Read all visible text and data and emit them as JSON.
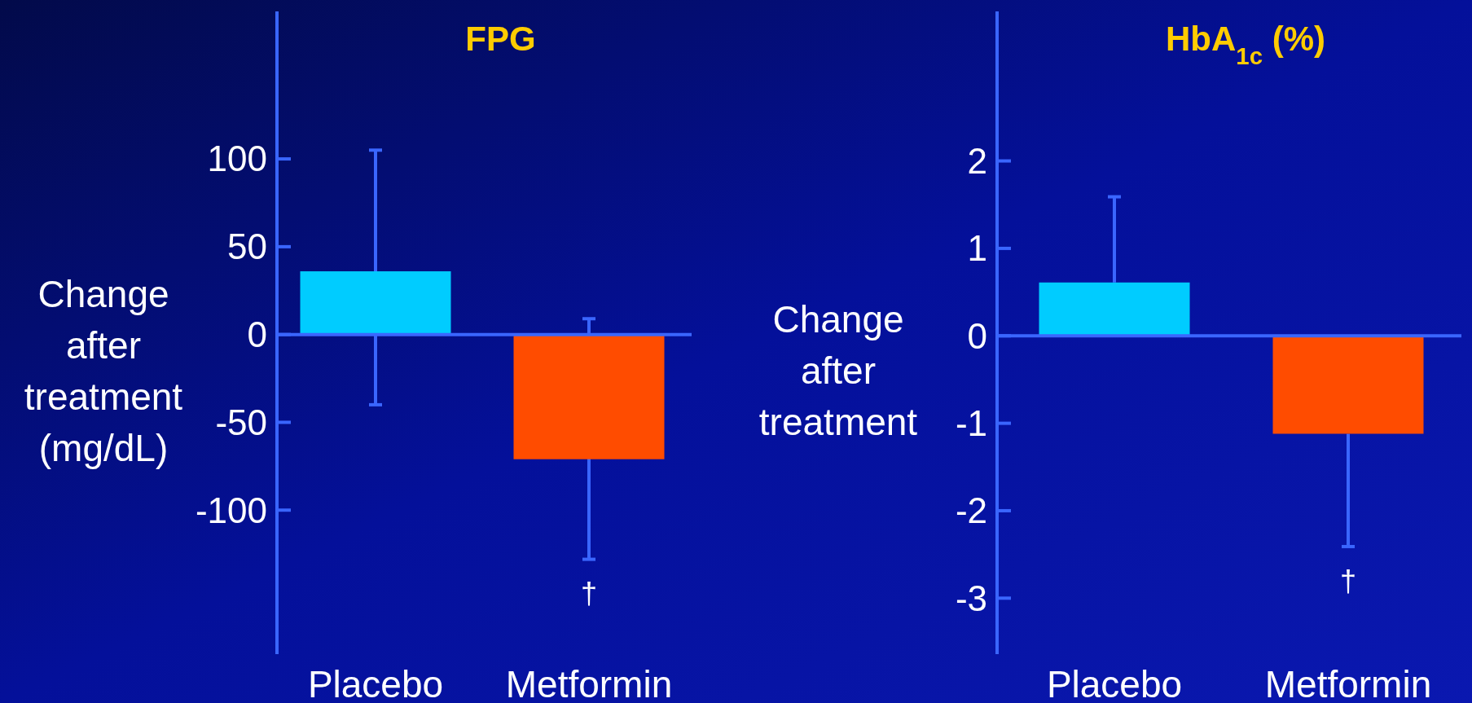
{
  "chart_data": [
    {
      "type": "bar",
      "title": "FPG",
      "ylabel": "Change after treatment (mg/dL)",
      "categories": [
        "Placebo",
        "Metformin"
      ],
      "values": [
        36,
        -71
      ],
      "colors": [
        "#00ccff",
        "#ff4c00"
      ],
      "errors": [
        [
          -40,
          105
        ],
        [
          -128,
          9
        ]
      ],
      "ylim": [
        -182,
        184
      ],
      "yticks": [
        -100,
        -50,
        0,
        50,
        100
      ],
      "grid": false,
      "ref_lines": [
        {
          "axis": "y",
          "value": 0
        }
      ],
      "annotations": [
        "†"
      ]
    },
    {
      "type": "bar",
      "title": "HbA$_{1c}$ (%)",
      "ylabel": "Change after treatment",
      "categories": [
        "Placebo",
        "Metformin"
      ],
      "values": [
        0.61,
        -1.12
      ],
      "colors": [
        "#00ccff",
        "#ff4c00"
      ],
      "errors": [
        [
          0.61,
          1.59
        ],
        [
          -2.41,
          -1.12
        ]
      ],
      "ylim": [
        -3.64,
        3.71
      ],
      "yticks": [
        -3,
        -2,
        -1,
        0,
        1,
        2
      ],
      "grid": false,
      "ref_lines": [
        {
          "axis": "y",
          "value": 0
        }
      ],
      "annotations": [
        "†"
      ]
    }
  ]
}
